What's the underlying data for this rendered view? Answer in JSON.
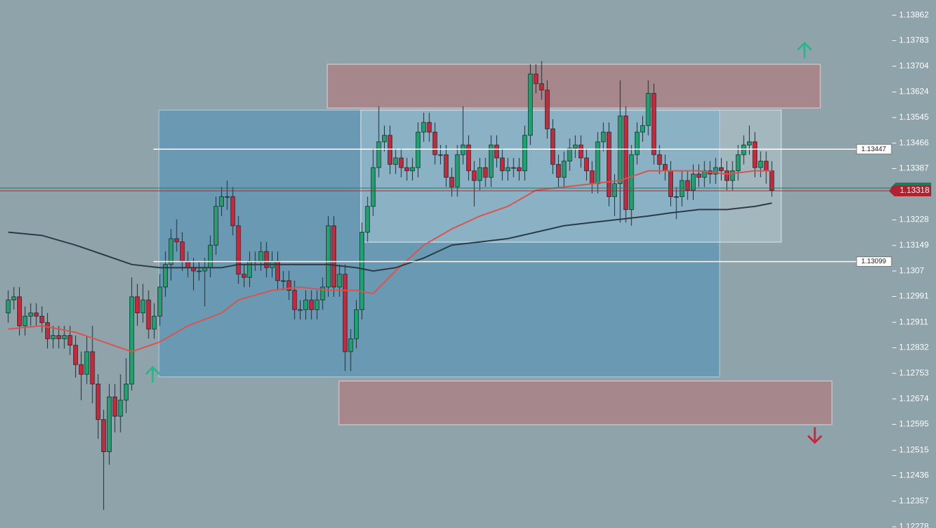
{
  "chart_data": {
    "type": "candlestick",
    "ylim": [
      1.12274,
      1.13909
    ],
    "yticks": [
      1.13862,
      1.13783,
      1.13704,
      1.13624,
      1.13545,
      1.13466,
      1.13387,
      1.13228,
      1.13149,
      1.1307,
      1.12991,
      1.12911,
      1.12832,
      1.12753,
      1.12674,
      1.12595,
      1.12515,
      1.12436,
      1.12357,
      1.12278
    ],
    "up_color": "#22a070",
    "down_color": "#c8283c",
    "open": [
      1.1294,
      1.1298,
      1.1299,
      1.129,
      1.1293,
      1.1294,
      1.1293,
      1.1291,
      1.1286,
      1.1287,
      1.1286,
      1.1287,
      1.1284,
      1.1278,
      1.1275,
      1.1282,
      1.1272,
      1.1261,
      1.1251,
      1.1268,
      1.1262,
      1.1267,
      1.1272,
      1.1299,
      1.1294,
      1.1298,
      1.1289,
      1.1293,
      1.1302,
      1.1309,
      1.1317,
      1.1316,
      1.131,
      1.1308,
      1.1307,
      1.1307,
      1.1308,
      1.1315,
      1.1327,
      1.133,
      1.133,
      1.1321,
      1.1306,
      1.1305,
      1.131,
      1.131,
      1.1313,
      1.1308,
      1.131,
      1.1304,
      1.1304,
      1.1301,
      1.1295,
      1.1295,
      1.1298,
      1.1295,
      1.1298,
      1.1302,
      1.1321,
      1.1302,
      1.1306,
      1.1282,
      1.1286,
      1.1295,
      1.1319,
      1.1327,
      1.1339,
      1.1347,
      1.1349,
      1.134,
      1.1342,
      1.1339,
      1.1338,
      1.1339,
      1.135,
      1.1353,
      1.135,
      1.1343,
      1.1343,
      1.1336,
      1.1333,
      1.1343,
      1.1346,
      1.1338,
      1.1335,
      1.1339,
      1.1336,
      1.1346,
      1.1342,
      1.1338,
      1.1339,
      1.1339,
      1.1338,
      1.1349,
      1.1368,
      1.1365,
      1.1363,
      1.1351,
      1.134,
      1.1336,
      1.1341,
      1.1345,
      1.1346,
      1.1342,
      1.1338,
      1.1334,
      1.1347,
      1.135,
      1.133,
      1.1334,
      1.1355,
      1.1326,
      1.1343,
      1.135,
      1.1352,
      1.1362,
      1.1343,
      1.134,
      1.1338,
      1.133,
      1.133,
      1.1335,
      1.1332,
      1.1337,
      1.1336,
      1.1338,
      1.1337,
      1.1339,
      1.1338,
      1.1335,
      1.1338,
      1.1343,
      1.1346,
      1.1347,
      1.1339,
      1.1341,
      1.1338
    ],
    "high": [
      1.1301,
      1.1302,
      1.1302,
      1.1296,
      1.1297,
      1.1297,
      1.1296,
      1.1294,
      1.129,
      1.129,
      1.129,
      1.129,
      1.1287,
      1.1282,
      1.1287,
      1.129,
      1.1275,
      1.1264,
      1.1272,
      1.1272,
      1.1275,
      1.128,
      1.1305,
      1.1303,
      1.1303,
      1.1301,
      1.1297,
      1.1306,
      1.1313,
      1.132,
      1.1323,
      1.1319,
      1.1313,
      1.1311,
      1.131,
      1.1311,
      1.1318,
      1.133,
      1.1333,
      1.1335,
      1.1333,
      1.1324,
      1.1309,
      1.1313,
      1.1313,
      1.1316,
      1.1316,
      1.1313,
      1.1313,
      1.1307,
      1.1307,
      1.1304,
      1.1298,
      1.1301,
      1.1301,
      1.1301,
      1.1305,
      1.1324,
      1.1324,
      1.1309,
      1.1309,
      1.1289,
      1.1298,
      1.1322,
      1.133,
      1.1345,
      1.1358,
      1.1352,
      1.1352,
      1.1345,
      1.1345,
      1.1342,
      1.1342,
      1.1353,
      1.1356,
      1.1356,
      1.1353,
      1.1346,
      1.1346,
      1.1339,
      1.1346,
      1.1358,
      1.1349,
      1.1341,
      1.1342,
      1.1342,
      1.1349,
      1.1349,
      1.1345,
      1.1342,
      1.1342,
      1.1342,
      1.1352,
      1.1371,
      1.1371,
      1.1372,
      1.1366,
      1.1354,
      1.1343,
      1.1344,
      1.1348,
      1.1349,
      1.1349,
      1.1345,
      1.1341,
      1.135,
      1.1353,
      1.1353,
      1.1337,
      1.1366,
      1.1358,
      1.1346,
      1.1353,
      1.1355,
      1.1366,
      1.1365,
      1.1346,
      1.1343,
      1.1341,
      1.1333,
      1.1338,
      1.1338,
      1.134,
      1.134,
      1.1341,
      1.1341,
      1.1342,
      1.1342,
      1.1341,
      1.1341,
      1.1346,
      1.1349,
      1.1352,
      1.135,
      1.1344,
      1.1344,
      1.1341
    ],
    "low": [
      1.1291,
      1.1295,
      1.1287,
      1.1287,
      1.129,
      1.129,
      1.1288,
      1.1283,
      1.1283,
      1.1283,
      1.1283,
      1.1281,
      1.1274,
      1.1267,
      1.1272,
      1.1266,
      1.1255,
      1.1233,
      1.1247,
      1.1257,
      1.1257,
      1.1263,
      1.127,
      1.129,
      1.1291,
      1.1286,
      1.1286,
      1.129,
      1.1299,
      1.1304,
      1.1313,
      1.1307,
      1.1305,
      1.1301,
      1.1304,
      1.1296,
      1.1305,
      1.1312,
      1.1324,
      1.1326,
      1.1318,
      1.1303,
      1.1302,
      1.1302,
      1.1307,
      1.1307,
      1.1305,
      1.1305,
      1.1301,
      1.1301,
      1.1298,
      1.1292,
      1.1292,
      1.1292,
      1.1292,
      1.1292,
      1.1295,
      1.1299,
      1.1299,
      1.1299,
      1.1276,
      1.1276,
      1.1283,
      1.1292,
      1.1316,
      1.1324,
      1.1336,
      1.1344,
      1.1337,
      1.1337,
      1.1336,
      1.1335,
      1.1335,
      1.1336,
      1.1347,
      1.1347,
      1.134,
      1.134,
      1.1333,
      1.133,
      1.133,
      1.134,
      1.1335,
      1.1327,
      1.1332,
      1.1333,
      1.1333,
      1.1339,
      1.1335,
      1.1335,
      1.1336,
      1.1335,
      1.1335,
      1.1346,
      1.1362,
      1.136,
      1.1348,
      1.1337,
      1.1333,
      1.1333,
      1.1338,
      1.1342,
      1.1339,
      1.1335,
      1.1331,
      1.1331,
      1.1344,
      1.1327,
      1.1324,
      1.1322,
      1.1322,
      1.1321,
      1.134,
      1.1347,
      1.1349,
      1.134,
      1.1337,
      1.1335,
      1.1327,
      1.1323,
      1.1327,
      1.1329,
      1.1329,
      1.1333,
      1.1333,
      1.1334,
      1.1334,
      1.1335,
      1.1332,
      1.1332,
      1.1335,
      1.134,
      1.1343,
      1.1336,
      1.1336,
      1.1334,
      1.133
    ],
    "close": [
      1.1298,
      1.1299,
      1.129,
      1.1293,
      1.1294,
      1.1293,
      1.1291,
      1.1286,
      1.1287,
      1.1286,
      1.1287,
      1.1284,
      1.1278,
      1.1275,
      1.1282,
      1.1272,
      1.1261,
      1.1251,
      1.1268,
      1.1262,
      1.1267,
      1.1272,
      1.1299,
      1.1294,
      1.1298,
      1.1289,
      1.1293,
      1.1302,
      1.1309,
      1.1317,
      1.1316,
      1.131,
      1.1308,
      1.1307,
      1.1307,
      1.1308,
      1.1315,
      1.1327,
      1.133,
      1.133,
      1.1321,
      1.1306,
      1.1305,
      1.131,
      1.131,
      1.1313,
      1.1308,
      1.131,
      1.1304,
      1.1304,
      1.1301,
      1.1295,
      1.1295,
      1.1298,
      1.1295,
      1.1298,
      1.1302,
      1.1321,
      1.1302,
      1.1306,
      1.1282,
      1.1286,
      1.1295,
      1.1319,
      1.1327,
      1.1339,
      1.1347,
      1.1349,
      1.134,
      1.1342,
      1.1339,
      1.1338,
      1.1339,
      1.135,
      1.1353,
      1.135,
      1.1343,
      1.1343,
      1.1336,
      1.1333,
      1.1343,
      1.1346,
      1.1338,
      1.1335,
      1.1339,
      1.1336,
      1.1346,
      1.1342,
      1.1338,
      1.1339,
      1.1339,
      1.1338,
      1.1349,
      1.1368,
      1.1365,
      1.1363,
      1.1351,
      1.134,
      1.1336,
      1.1341,
      1.1345,
      1.1346,
      1.1342,
      1.1338,
      1.1334,
      1.1347,
      1.135,
      1.133,
      1.1334,
      1.1355,
      1.1326,
      1.1343,
      1.135,
      1.1352,
      1.1362,
      1.1343,
      1.134,
      1.1338,
      1.133,
      1.133,
      1.1335,
      1.1332,
      1.1337,
      1.1336,
      1.1338,
      1.1337,
      1.1339,
      1.1338,
      1.1335,
      1.1338,
      1.1343,
      1.1346,
      1.1347,
      1.1339,
      1.1341,
      1.1338,
      1.1332
    ],
    "series": [
      {
        "color": "#d9534f",
        "x": [
          0,
          6,
          12,
          17,
          22,
          27,
          32,
          38,
          41,
          47,
          52,
          57,
          62,
          65,
          69,
          74,
          79,
          84,
          89,
          94,
          99,
          104,
          109,
          114,
          118,
          123,
          128,
          133,
          136
        ],
        "values": [
          1.1289,
          1.129,
          1.1288,
          1.1285,
          1.1282,
          1.1285,
          1.129,
          1.1294,
          1.1298,
          1.1301,
          1.1302,
          1.1301,
          1.1301,
          1.13,
          1.1307,
          1.1315,
          1.132,
          1.1324,
          1.1327,
          1.1332,
          1.1333,
          1.1334,
          1.1335,
          1.1338,
          1.1338,
          1.1338,
          1.1337,
          1.1338,
          1.1338
        ]
      },
      {
        "color": "#2b3a44",
        "x": [
          0,
          6,
          12,
          17,
          22,
          27,
          32,
          38,
          41,
          47,
          52,
          57,
          62,
          65,
          69,
          74,
          79,
          84,
          89,
          94,
          99,
          104,
          109,
          114,
          118,
          123,
          128,
          133,
          136
        ],
        "values": [
          1.1319,
          1.1318,
          1.1315,
          1.1312,
          1.1309,
          1.1308,
          1.1308,
          1.1308,
          1.1309,
          1.1309,
          1.1309,
          1.1309,
          1.1308,
          1.1307,
          1.1308,
          1.1311,
          1.1315,
          1.1316,
          1.1317,
          1.1319,
          1.1321,
          1.1322,
          1.1323,
          1.1324,
          1.1325,
          1.1326,
          1.1326,
          1.1327,
          1.1328
        ]
      }
    ],
    "price_lines": [
      1.13447,
      1.13099
    ],
    "last_price": 1.13318
  }
}
